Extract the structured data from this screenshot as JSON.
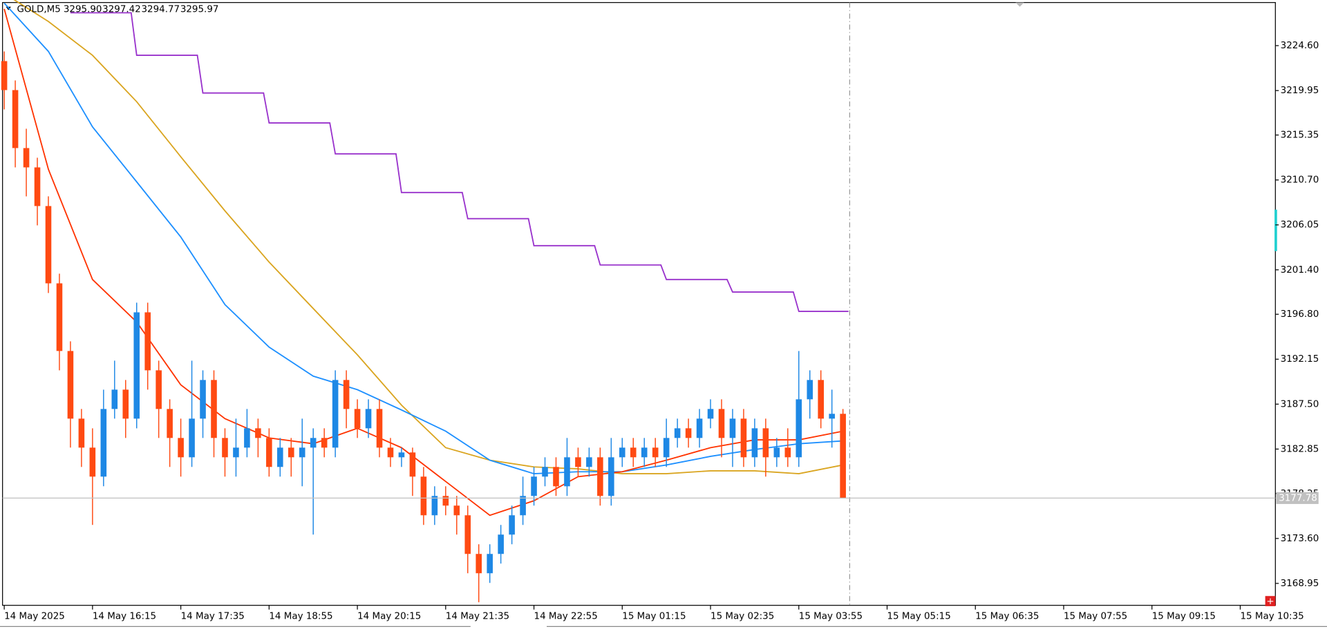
{
  "chart_data": {
    "type": "candlestick",
    "title": "GOLD,M5",
    "header_ohlc": [
      {
        "value": 3295.9,
        "label": "3295.90"
      },
      3297.42,
      3294.77,
      3295.97
    ],
    "x_labels": [
      "14 May 2025",
      "14 May 16:15",
      "14 May 17:35",
      "14 May 18:55",
      "14 May 20:15",
      "14 May 21:35",
      "14 May 22:55",
      "15 May 01:15",
      "15 May 02:35",
      "15 May 03:55",
      "15 May 05:15",
      "15 May 06:35",
      "15 May 07:55",
      "15 May 09:15",
      "15 May 10:35"
    ],
    "ylim": [
      3166.68,
      3229.06
    ],
    "yticks": [
      {
        "value": 3224.6,
        "label": "3224.60"
      },
      3219.95,
      3215.35,
      {
        "value": 3210.7,
        "label": "3210.70"
      },
      3206.05,
      {
        "value": 3201.4,
        "label": "3201.40"
      },
      {
        "value": 3196.8,
        "label": "3196.80"
      },
      3192.15,
      {
        "value": 3187.5,
        "label": "3187.50"
      },
      3182.85,
      3178.25,
      {
        "value": 3173.6,
        "label": "3173.60"
      },
      3168.95
    ],
    "bull_color": "#1e88e5",
    "bear_color": "#ff4a12",
    "open": [
      3223,
      3220,
      3214,
      3212,
      3208,
      3200,
      3193,
      3186,
      3183,
      3180,
      3187,
      3189,
      3186,
      3197,
      3191,
      3187,
      3184,
      3182,
      3186,
      3190,
      3184,
      3182,
      3183,
      3185,
      3184,
      3181,
      3183,
      3182,
      3183,
      3184,
      3183,
      3190,
      3187,
      3185,
      3187,
      3183,
      3182,
      3182.5,
      3180,
      3176,
      3178,
      3177,
      3176,
      3172,
      3170,
      3172,
      3174,
      3176,
      3178,
      3180,
      3181,
      3179,
      3182,
      3181,
      3182,
      3178,
      3182,
      3183,
      3182,
      3183,
      3182,
      3184,
      3185,
      3184,
      3186,
      3187,
      3184,
      3186,
      3182,
      3185,
      3182,
      3183,
      3182,
      3188,
      3190,
      3186,
      3186.5
    ],
    "high": [
      3224,
      3221,
      3216,
      3213,
      3209,
      3201,
      3194,
      3187,
      3185,
      3189,
      3192,
      3190,
      3198,
      3198,
      3192,
      3188,
      3186,
      3192,
      3191,
      3191,
      3185,
      3186,
      3187,
      3186,
      3185,
      3184,
      3184,
      3186,
      3185,
      3185,
      3191,
      3191,
      3188,
      3188,
      3188,
      3184,
      3183,
      3183,
      3181,
      3179,
      3179,
      3178,
      3177,
      3173,
      3173,
      3175,
      3177,
      3180,
      3181,
      3182,
      3182,
      3184,
      3183,
      3183,
      3183,
      3184,
      3184,
      3184,
      3184,
      3184,
      3186,
      3186,
      3186,
      3187,
      3188,
      3188,
      3187,
      3187,
      3186,
      3186,
      3184,
      3185,
      3193,
      3191,
      3191,
      3189,
      3187
    ],
    "low": [
      3218,
      3212,
      3209,
      3206,
      3199,
      3191,
      3183,
      3181,
      3175,
      3179,
      3186,
      3184,
      3185,
      3189,
      3184,
      3181,
      3180,
      3181,
      3184,
      3182,
      3180,
      3180,
      3182,
      3182,
      3180,
      3180,
      3180,
      3179,
      3174,
      3182,
      3182,
      3185,
      3184,
      3184,
      3182,
      3181,
      3181,
      3178,
      3175,
      3175,
      3176,
      3174,
      3170,
      3167,
      3169,
      3171,
      3173,
      3175,
      3177,
      3179,
      3178,
      3178,
      3180,
      3180,
      3177,
      3177,
      3181,
      3181,
      3181,
      3181,
      3181,
      3183,
      3183,
      3183,
      3185,
      3182,
      3181,
      3181,
      3181,
      3180,
      3181,
      3181,
      3181,
      3186,
      3185,
      3183,
      3177.78
    ],
    "close": [
      3220,
      3214,
      3212,
      3208,
      3200,
      3193,
      3186,
      3183,
      3180,
      3187,
      3189,
      3186,
      3197,
      3191,
      3187,
      3184,
      3182,
      3186,
      3190,
      3184,
      3182,
      3183,
      3185,
      3184,
      3181,
      3183,
      3182,
      3183,
      3184,
      3183,
      3190,
      3187,
      3185,
      3187,
      3183,
      3182,
      3182.5,
      3180,
      3176,
      3178,
      3177,
      3176,
      3172,
      3170,
      3172,
      3174,
      3176,
      3178,
      3180,
      3181,
      3179,
      3182,
      3181,
      3182,
      3178,
      3182,
      3183,
      3182,
      3183,
      3182,
      3184,
      3185,
      3184,
      3186,
      3187,
      3184,
      3186,
      3182,
      3185,
      3182,
      3183,
      3182,
      3188,
      3190,
      3186,
      3186.5,
      3177.78
    ],
    "series": [
      {
        "color": "#daa520",
        "values": [
          3230,
          3227.1,
          3223.6,
          3218.8,
          3213.1,
          3207.5,
          3202.2,
          3197.4,
          3192.6,
          3187.4,
          3183,
          3181.7,
          3181,
          3180.8,
          3180.3,
          3180.3,
          3180.6,
          3180.6,
          3180.3,
          3181.2
        ]
      },
      {
        "color": "#1e90ff",
        "values": [
          3229,
          3224,
          3216.2,
          3210.5,
          3204.8,
          3197.8,
          3193.4,
          3190.4,
          3189,
          3186.9,
          3184.7,
          3181.7,
          3180.3,
          3180.5,
          3180.5,
          3181.2,
          3182.1,
          3182.8,
          3183.4,
          3183.7
        ]
      },
      {
        "color": "#ff3300",
        "values": [
          3228.4,
          3211.8,
          3200.4,
          3196,
          3189.5,
          3186,
          3184,
          3183.4,
          3185,
          3183,
          3179.5,
          3176,
          3177.5,
          3180,
          3180.5,
          3181.7,
          3183,
          3183.8,
          3183.8,
          3184.7
        ]
      }
    ],
    "steps": {
      "color": "#9932cc",
      "values": [
        3228,
        3223.6,
        3219.7,
        3216.6,
        3213.4,
        3209.4,
        3206.7,
        3203.9,
        3201.9,
        3200.4,
        3199.1,
        3197.1
      ]
    }
  }
}
